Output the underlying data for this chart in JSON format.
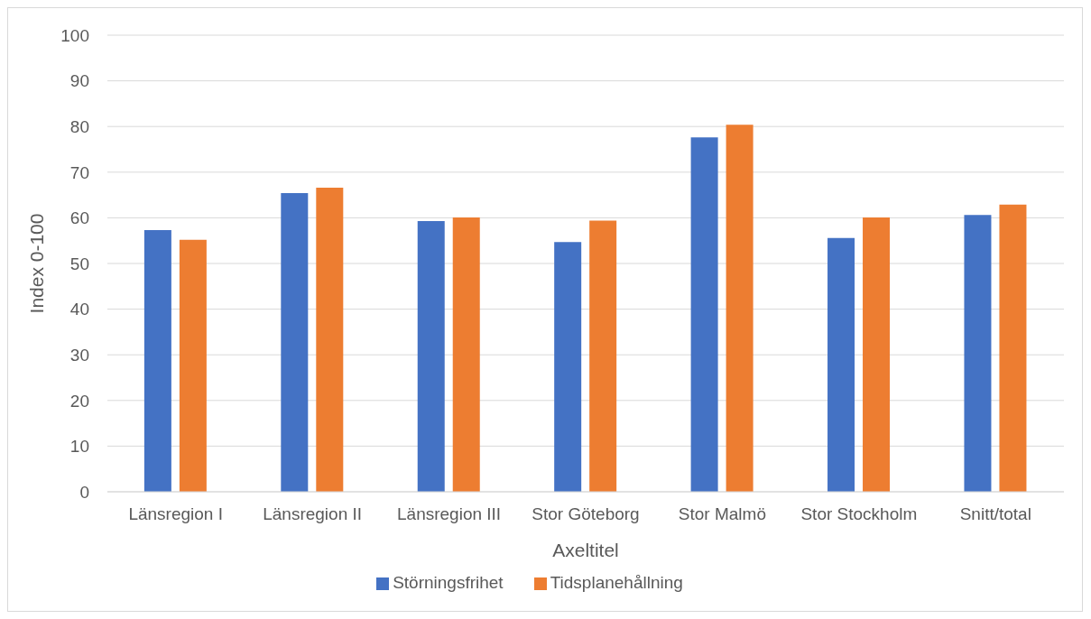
{
  "chart_data": {
    "type": "bar",
    "xlabel": "Axeltitel",
    "ylabel": "Index 0-100",
    "categories": [
      "Länsregion I",
      "Länsregion II",
      "Länsregion III",
      "Stor Göteborg",
      "Stor Malmö",
      "Stor Stockholm",
      "Snitt/total"
    ],
    "series": [
      {
        "name": "Störningsfrihet",
        "color": "#4472c4",
        "values": [
          57.3,
          65.4,
          59.3,
          54.7,
          77.6,
          55.6,
          60.6
        ]
      },
      {
        "name": "Tidsplanehållning",
        "color": "#ed7d31",
        "values": [
          55.2,
          66.6,
          60.1,
          59.4,
          80.4,
          60.1,
          62.9
        ]
      }
    ],
    "ylim": [
      0,
      100
    ],
    "yticks": [
      0,
      10,
      20,
      30,
      40,
      50,
      60,
      70,
      80,
      90,
      100
    ],
    "grid": "y",
    "legend": "bottom"
  }
}
